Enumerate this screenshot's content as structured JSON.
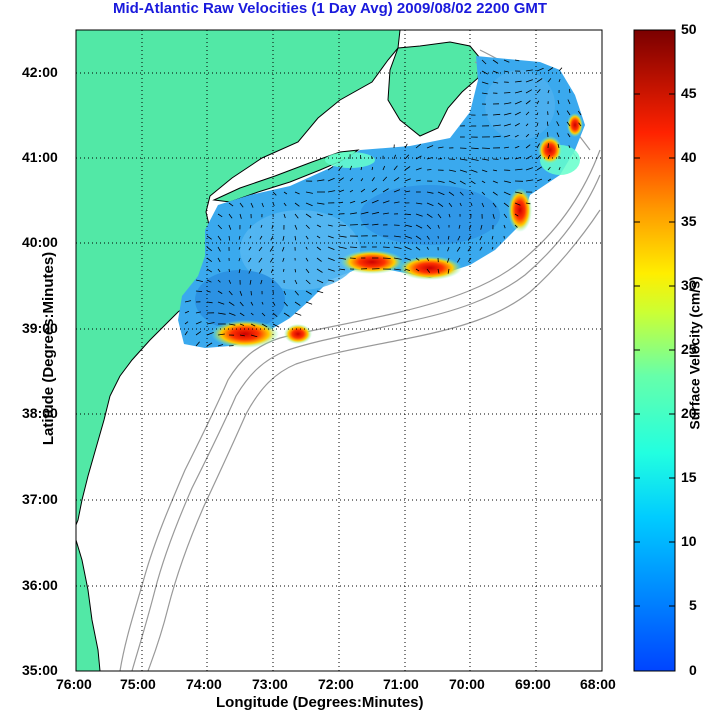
{
  "title": "Mid-Atlantic Raw Velocities (1 Day Avg) 2009/08/02 2200 GMT",
  "x_axis_label": "Longitude (Degrees:Minutes)",
  "y_axis_label": "Latitude (Degrees:Minutes)",
  "colorbar_label": "Surface Velocity (cm/s)",
  "x_ticks": [
    "76:00",
    "75:00",
    "74:00",
    "73:00",
    "72:00",
    "71:00",
    "70:00",
    "69:00",
    "68:00"
  ],
  "y_ticks": [
    "42:00",
    "41:00",
    "40:00",
    "39:00",
    "38:00",
    "37:00",
    "36:00",
    "35:00"
  ],
  "colorbar_ticks": [
    "50",
    "45",
    "40",
    "35",
    "30",
    "25",
    "20",
    "15",
    "10",
    "5",
    "0"
  ],
  "colors": {
    "land": "#52e8a6",
    "title": "#1a1adc",
    "velocity_low": "#0033ff",
    "velocity_mid": "#33ffcc",
    "velocity_high": "#800000"
  }
}
